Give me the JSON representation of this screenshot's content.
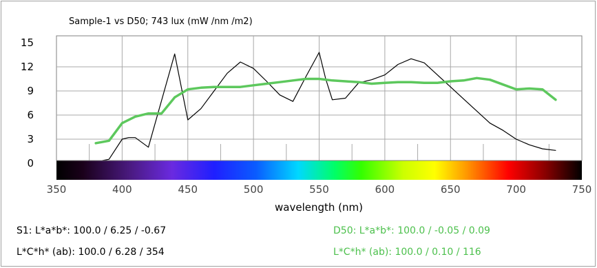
{
  "chart_data": {
    "type": "line",
    "title": "Sample-1 vs D50; 743 lux (mW /nm /m2)",
    "xlabel": "wavelength (nm)",
    "ylabel": "",
    "xlim": [
      350,
      750
    ],
    "ylim": [
      0,
      15
    ],
    "xticks": [
      "350",
      "400",
      "450",
      "500",
      "550",
      "600",
      "650",
      "700",
      "750"
    ],
    "yticks": [
      "0",
      "3",
      "6",
      "9",
      "12",
      "15"
    ],
    "grid": true,
    "spectrum_bar": true,
    "series": [
      {
        "key": "sample",
        "color": "#000000",
        "x": [
          380,
          390,
          400,
          405,
          410,
          420,
          440,
          450,
          460,
          470,
          480,
          490,
          500,
          510,
          520,
          530,
          540,
          550,
          555,
          560,
          570,
          580,
          590,
          600,
          610,
          620,
          630,
          640,
          650,
          660,
          670,
          680,
          690,
          700,
          710,
          720,
          730
        ],
        "y": [
          0.2,
          0.5,
          3.0,
          3.2,
          3.2,
          2.0,
          13.6,
          5.4,
          6.8,
          9.0,
          11.2,
          12.6,
          11.8,
          10.2,
          8.5,
          7.7,
          10.8,
          13.8,
          10.5,
          7.9,
          8.1,
          10.0,
          10.4,
          11.0,
          12.3,
          13.0,
          12.5,
          11.0,
          9.5,
          8.0,
          6.5,
          5.0,
          4.1,
          3.0,
          2.3,
          1.8,
          1.6
        ]
      },
      {
        "key": "d50",
        "color": "#5dc85d",
        "x": [
          380,
          390,
          400,
          410,
          420,
          430,
          440,
          450,
          460,
          470,
          480,
          490,
          500,
          510,
          520,
          530,
          540,
          550,
          560,
          570,
          580,
          590,
          600,
          610,
          620,
          630,
          640,
          650,
          660,
          670,
          680,
          690,
          700,
          710,
          720,
          730
        ],
        "y": [
          2.5,
          2.8,
          5.0,
          5.8,
          6.2,
          6.2,
          8.2,
          9.2,
          9.4,
          9.5,
          9.5,
          9.5,
          9.7,
          9.9,
          10.1,
          10.3,
          10.5,
          10.5,
          10.3,
          10.2,
          10.1,
          9.9,
          10.0,
          10.1,
          10.1,
          10.0,
          10.0,
          10.2,
          10.3,
          10.6,
          10.4,
          9.8,
          9.2,
          9.3,
          9.2,
          7.9
        ]
      }
    ]
  },
  "stats": {
    "s1_lab": "S1: L*a*b*: 100.0 / 6.25 / -0.67",
    "s1_lch": "L*C*h* (ab): 100.0 / 6.28 / 354",
    "d50_lab": "D50: L*a*b*: 100.0 / -0.05 / 0.09",
    "d50_lch": "L*C*h* (ab): 100.0 / 0.10 / 116"
  }
}
